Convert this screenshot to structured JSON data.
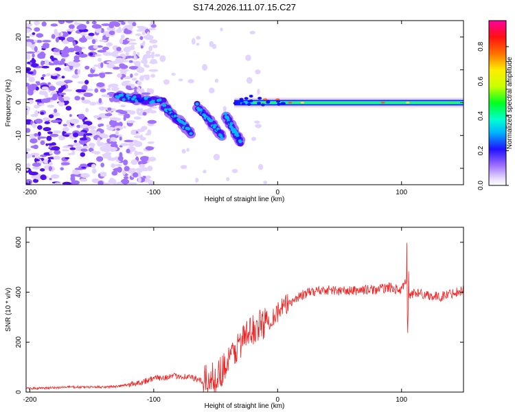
{
  "title": "S174.2026.111.07.15.C27",
  "chart_data": [
    {
      "type": "heatmap",
      "xlabel": "Height of straight line (km)",
      "ylabel": "Frequency (Hz)",
      "xlim": [
        -203,
        150
      ],
      "ylim": [
        -25,
        25
      ],
      "x_ticks": [
        -200,
        -100,
        0,
        100
      ],
      "y_ticks": [
        -20,
        -10,
        0,
        10,
        20
      ],
      "colorbar": {
        "label": "Normalized spectral amplitude",
        "range": [
          0,
          0.95
        ],
        "ticks": [
          0.0,
          0.2,
          0.4,
          0.6,
          0.8
        ]
      },
      "features": [
        {
          "name": "noise-region",
          "x_range": [
            -203,
            -120
          ],
          "y_range": [
            -25,
            25
          ]
        },
        {
          "name": "branch-1",
          "x_start": -130,
          "x_end": -92,
          "freq_start": 2,
          "freq_end": 0
        },
        {
          "name": "branch-2",
          "x_start": -92,
          "x_end": -70,
          "freq_start": -1,
          "freq_end": -9
        },
        {
          "name": "branch-3",
          "x_start": -65,
          "x_end": -45,
          "freq_start": -1,
          "freq_end": -10
        },
        {
          "name": "branch-4",
          "x_start": -42,
          "x_end": -30,
          "freq_start": -4,
          "freq_end": -12
        },
        {
          "name": "steady-line",
          "x_start": -35,
          "x_end": 150,
          "freq": 0
        }
      ]
    },
    {
      "type": "line",
      "xlabel": "Height of straight line (km)",
      "ylabel": "SNR (10 * v/v)",
      "xlim": [
        -203,
        150
      ],
      "ylim": [
        0,
        660
      ],
      "x_ticks": [
        -200,
        -100,
        0,
        100
      ],
      "y_ticks": [
        0,
        200,
        400,
        600
      ],
      "series": [
        {
          "name": "SNR",
          "color": "#ee2222",
          "x": [
            -203,
            -190,
            -170,
            -150,
            -130,
            -120,
            -110,
            -100,
            -90,
            -80,
            -70,
            -60,
            -50,
            -40,
            -30,
            -20,
            -10,
            0,
            10,
            20,
            30,
            40,
            50,
            60,
            70,
            80,
            90,
            100,
            104,
            106,
            110,
            120,
            130,
            140,
            150
          ],
          "y": [
            15,
            15,
            20,
            20,
            22,
            30,
            40,
            55,
            60,
            65,
            60,
            40,
            60,
            120,
            200,
            250,
            280,
            320,
            360,
            390,
            405,
            410,
            405,
            405,
            410,
            410,
            420,
            405,
            450,
            380,
            400,
            390,
            380,
            395,
            410
          ]
        }
      ]
    }
  ]
}
